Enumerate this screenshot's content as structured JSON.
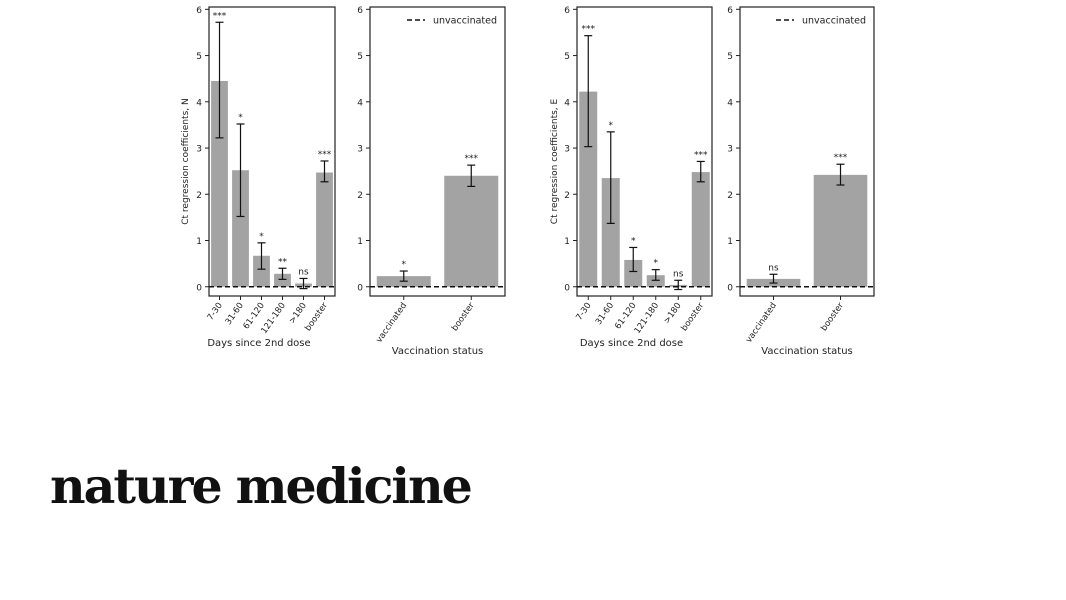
{
  "brand": {
    "title": "nature medicine"
  },
  "chart_data": [
    {
      "type": "bar",
      "ylabel": "Ct regression coefficients, N",
      "xlabel": "Days since 2nd dose",
      "categories": [
        "7-30",
        "31-60",
        "61-120",
        "121-180",
        ">180",
        "booster"
      ],
      "values": [
        4.45,
        2.52,
        0.67,
        0.28,
        0.07,
        2.47
      ],
      "err_low": [
        3.22,
        1.52,
        0.38,
        0.16,
        -0.04,
        2.27
      ],
      "err_high": [
        5.72,
        3.52,
        0.95,
        0.4,
        0.18,
        2.72
      ],
      "sig": [
        "***",
        "*",
        "*",
        "**",
        "ns",
        "***"
      ],
      "ylim": [
        -0.2,
        6.05
      ],
      "yticks": [
        "0",
        "1",
        "2",
        "3",
        "4",
        "5",
        "6"
      ],
      "reference_line": 0
    },
    {
      "type": "bar",
      "xlabel": "Vaccination status",
      "legend": "unvaccinated",
      "categories": [
        "vaccinated",
        "booster"
      ],
      "values": [
        0.23,
        2.4
      ],
      "err_low": [
        0.12,
        2.17
      ],
      "err_high": [
        0.34,
        2.63
      ],
      "sig": [
        "*",
        "***"
      ],
      "ylim": [
        -0.2,
        6.05
      ],
      "yticks": [
        "0",
        "1",
        "2",
        "3",
        "4",
        "5",
        "6"
      ],
      "reference_line": 0
    },
    {
      "type": "bar",
      "ylabel": "Ct regression coefficients, E",
      "xlabel": "Days since 2nd dose",
      "categories": [
        "7-30",
        "31-60",
        "61-120",
        "121-180",
        ">180",
        "booster"
      ],
      "values": [
        4.22,
        2.35,
        0.58,
        0.25,
        0.04,
        2.48
      ],
      "err_low": [
        3.03,
        1.37,
        0.33,
        0.14,
        -0.06,
        2.27
      ],
      "err_high": [
        5.43,
        3.35,
        0.85,
        0.37,
        0.14,
        2.71
      ],
      "sig": [
        "***",
        "*",
        "*",
        "*",
        "ns",
        "***"
      ],
      "ylim": [
        -0.2,
        6.05
      ],
      "yticks": [
        "0",
        "1",
        "2",
        "3",
        "4",
        "5",
        "6"
      ],
      "reference_line": 0
    },
    {
      "type": "bar",
      "xlabel": "Vaccination status",
      "legend": "unvaccinated",
      "categories": [
        "vaccinated",
        "booster"
      ],
      "values": [
        0.17,
        2.42
      ],
      "err_low": [
        0.08,
        2.2
      ],
      "err_high": [
        0.27,
        2.65
      ],
      "sig": [
        "ns",
        "***"
      ],
      "ylim": [
        -0.2,
        6.05
      ],
      "yticks": [
        "0",
        "1",
        "2",
        "3",
        "4",
        "5",
        "6"
      ],
      "reference_line": 0
    }
  ]
}
